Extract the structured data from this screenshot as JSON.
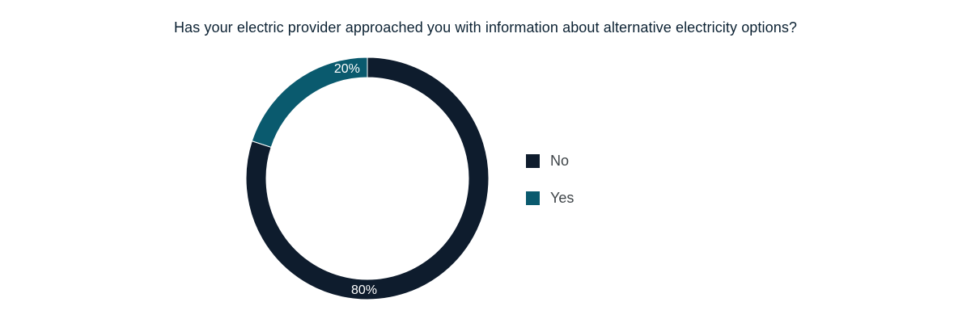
{
  "chart_data": {
    "type": "pie",
    "title": "Has your electric provider approached you with information about alternative electricity options?",
    "categories": [
      "No",
      "Yes"
    ],
    "values": [
      80,
      20
    ],
    "labels": [
      "80%",
      "20%"
    ],
    "colors": [
      "#0e1c2d",
      "#0a5a6e"
    ],
    "style": "donut",
    "legend_position": "right"
  }
}
